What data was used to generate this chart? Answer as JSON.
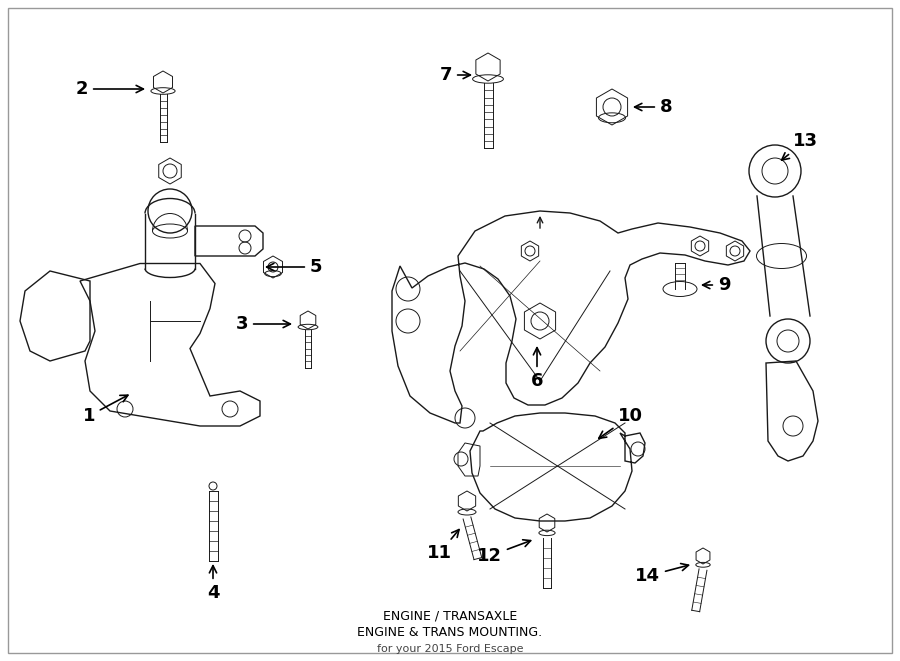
{
  "bg_color": "#ffffff",
  "line_color": "#1a1a1a",
  "figsize": [
    9.0,
    6.61
  ],
  "dpi": 100,
  "xlim": [
    0,
    900
  ],
  "ylim": [
    0,
    661
  ],
  "title_line1": "ENGINE / TRANSAXLE",
  "title_line2": "ENGINE & TRANS MOUNTING.",
  "title_line3": "for your 2015 Ford Escape"
}
